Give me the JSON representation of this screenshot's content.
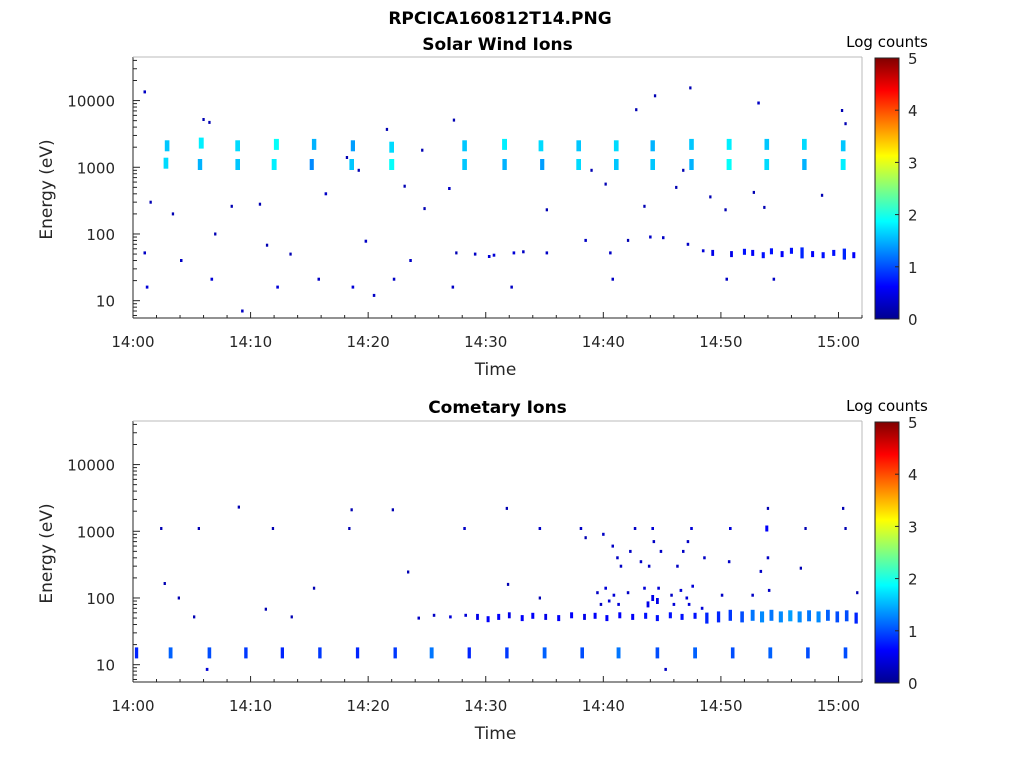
{
  "figure": {
    "file_title": "RPCICA160812T14.PNG"
  },
  "colormap": [
    "#00008f",
    "#0000ff",
    "#0080ff",
    "#00ffff",
    "#80ff80",
    "#ffff00",
    "#ff8000",
    "#ff0000",
    "#800000"
  ],
  "chart_data": [
    {
      "type": "heatmap",
      "title": "Solar Wind Ions",
      "xlabel": "Time",
      "ylabel": "Energy (eV)",
      "x_ticks": [
        "14:00",
        "14:10",
        "14:20",
        "14:30",
        "14:40",
        "14:50",
        "15:00"
      ],
      "y_ticks": [
        "10",
        "100",
        "1000",
        "10000"
      ],
      "y_scale": "log",
      "xlim_minutes": [
        0,
        62
      ],
      "ylim": [
        5.5,
        45000
      ],
      "colorbar": {
        "label": "Log counts",
        "ticks": [
          "0",
          "1",
          "2",
          "3",
          "4",
          "5"
        ],
        "range": [
          0,
          5
        ]
      },
      "points": [
        [
          1.0,
          13500,
          0.3
        ],
        [
          2.9,
          2100,
          1.6
        ],
        [
          2.8,
          1150,
          1.7
        ],
        [
          5.8,
          2300,
          1.8
        ],
        [
          5.7,
          1100,
          1.5
        ],
        [
          8.9,
          2100,
          1.7
        ],
        [
          8.9,
          1100,
          1.6
        ],
        [
          12.2,
          2200,
          1.9
        ],
        [
          12.0,
          1100,
          1.8
        ],
        [
          15.4,
          2200,
          1.5
        ],
        [
          15.2,
          1100,
          1.3
        ],
        [
          18.7,
          2100,
          1.4
        ],
        [
          18.6,
          1100,
          1.6
        ],
        [
          22.0,
          2000,
          1.7
        ],
        [
          22.0,
          1100,
          1.9
        ],
        [
          28.2,
          2100,
          1.6
        ],
        [
          28.2,
          1100,
          1.6
        ],
        [
          31.6,
          2200,
          1.8
        ],
        [
          31.6,
          1100,
          1.5
        ],
        [
          34.7,
          2100,
          1.7
        ],
        [
          34.8,
          1100,
          1.4
        ],
        [
          37.9,
          2100,
          1.6
        ],
        [
          37.9,
          1100,
          1.7
        ],
        [
          41.1,
          2100,
          1.7
        ],
        [
          41.1,
          1100,
          1.6
        ],
        [
          44.2,
          2100,
          1.5
        ],
        [
          44.2,
          1100,
          1.6
        ],
        [
          47.5,
          2200,
          1.6
        ],
        [
          47.5,
          1100,
          1.5
        ],
        [
          50.7,
          2200,
          1.8
        ],
        [
          50.7,
          1100,
          1.9
        ],
        [
          53.9,
          2200,
          1.6
        ],
        [
          53.9,
          1100,
          1.7
        ],
        [
          57.1,
          2200,
          1.7
        ],
        [
          57.1,
          1100,
          1.5
        ],
        [
          60.4,
          2100,
          1.6
        ],
        [
          60.4,
          1100,
          1.8
        ],
        [
          6.0,
          5200,
          0.2
        ],
        [
          6.5,
          4700,
          0.2
        ],
        [
          18.2,
          1400,
          0.2
        ],
        [
          21.6,
          3700,
          0.2
        ],
        [
          24.6,
          1800,
          0.2
        ],
        [
          27.3,
          5100,
          0.2
        ],
        [
          42.8,
          7300,
          0.2
        ],
        [
          44.4,
          11800,
          0.2
        ],
        [
          47.4,
          15500,
          0.2
        ],
        [
          53.2,
          9200,
          0.3
        ],
        [
          60.3,
          7100,
          0.2
        ],
        [
          60.6,
          4500,
          0.2
        ],
        [
          1.5,
          300,
          0.2
        ],
        [
          3.4,
          200,
          0.2
        ],
        [
          8.4,
          260,
          0.2
        ],
        [
          10.8,
          280,
          0.2
        ],
        [
          16.4,
          400,
          0.3
        ],
        [
          19.2,
          900,
          0.2
        ],
        [
          23.1,
          520,
          0.2
        ],
        [
          24.8,
          240,
          0.2
        ],
        [
          26.9,
          480,
          0.3
        ],
        [
          35.2,
          230,
          0.2
        ],
        [
          39.0,
          900,
          0.2
        ],
        [
          40.2,
          560,
          0.2
        ],
        [
          43.5,
          260,
          0.2
        ],
        [
          46.2,
          500,
          0.2
        ],
        [
          46.8,
          900,
          0.2
        ],
        [
          49.1,
          360,
          0.2
        ],
        [
          50.4,
          230,
          0.2
        ],
        [
          52.8,
          420,
          0.2
        ],
        [
          53.7,
          250,
          0.2
        ],
        [
          58.6,
          380,
          0.2
        ],
        [
          1.0,
          52,
          0.3
        ],
        [
          4.1,
          40,
          0.3
        ],
        [
          7.0,
          100,
          0.2
        ],
        [
          11.4,
          68,
          0.2
        ],
        [
          13.4,
          50,
          0.2
        ],
        [
          19.8,
          78,
          0.3
        ],
        [
          23.6,
          40,
          0.3
        ],
        [
          27.5,
          52,
          0.2
        ],
        [
          29.1,
          50,
          0.3
        ],
        [
          30.3,
          46,
          0.4
        ],
        [
          30.7,
          48,
          0.4
        ],
        [
          32.4,
          52,
          0.4
        ],
        [
          33.2,
          54,
          0.3
        ],
        [
          35.2,
          52,
          0.3
        ],
        [
          38.5,
          80,
          0.3
        ],
        [
          40.6,
          52,
          0.3
        ],
        [
          42.1,
          80,
          0.2
        ],
        [
          44.0,
          90,
          0.3
        ],
        [
          45.1,
          88,
          0.3
        ],
        [
          47.2,
          70,
          0.3
        ],
        [
          48.5,
          56,
          0.4
        ],
        [
          49.3,
          52,
          0.5
        ],
        [
          50.9,
          50,
          0.5
        ],
        [
          52.0,
          54,
          0.7
        ],
        [
          52.7,
          52,
          0.6
        ],
        [
          53.6,
          48,
          0.7
        ],
        [
          54.3,
          55,
          0.7
        ],
        [
          55.2,
          50,
          0.6
        ],
        [
          56.0,
          56,
          0.7
        ],
        [
          56.9,
          52,
          0.8
        ],
        [
          57.8,
          50,
          0.6
        ],
        [
          58.7,
          48,
          0.7
        ],
        [
          59.6,
          52,
          0.7
        ],
        [
          60.5,
          50,
          0.8
        ],
        [
          61.3,
          48,
          0.6
        ],
        [
          1.2,
          16,
          0.4
        ],
        [
          6.7,
          21,
          0.4
        ],
        [
          12.3,
          16,
          0.4
        ],
        [
          15.8,
          21,
          0.3
        ],
        [
          18.7,
          16,
          0.4
        ],
        [
          20.5,
          12,
          0.3
        ],
        [
          22.2,
          21,
          0.3
        ],
        [
          27.2,
          16,
          0.3
        ],
        [
          32.2,
          16,
          0.3
        ],
        [
          40.8,
          21,
          0.3
        ],
        [
          50.5,
          21,
          0.3
        ],
        [
          54.5,
          21,
          0.3
        ],
        [
          9.3,
          7,
          0.3
        ]
      ]
    },
    {
      "type": "heatmap",
      "title": "Cometary Ions",
      "xlabel": "Time",
      "ylabel": "Energy (eV)",
      "x_ticks": [
        "14:00",
        "14:10",
        "14:20",
        "14:30",
        "14:40",
        "14:50",
        "15:00"
      ],
      "y_ticks": [
        "10",
        "100",
        "1000",
        "10000"
      ],
      "y_scale": "log",
      "xlim_minutes": [
        0,
        62
      ],
      "ylim": [
        5.5,
        45000
      ],
      "colorbar": {
        "label": "Log counts",
        "ticks": [
          "0",
          "1",
          "2",
          "3",
          "4",
          "5"
        ],
        "range": [
          0,
          5
        ]
      },
      "points": [
        [
          2.4,
          1100,
          0.2
        ],
        [
          5.6,
          1100,
          0.2
        ],
        [
          9.0,
          2300,
          0.2
        ],
        [
          11.9,
          1100,
          0.2
        ],
        [
          18.6,
          2100,
          0.2
        ],
        [
          18.4,
          1100,
          0.2
        ],
        [
          22.1,
          2100,
          0.2
        ],
        [
          28.2,
          1100,
          0.3
        ],
        [
          31.8,
          2200,
          0.2
        ],
        [
          34.6,
          1100,
          0.3
        ],
        [
          38.1,
          1100,
          0.3
        ],
        [
          42.7,
          1100,
          0.3
        ],
        [
          44.2,
          1100,
          0.4
        ],
        [
          47.5,
          1100,
          0.4
        ],
        [
          50.8,
          1100,
          0.4
        ],
        [
          54.0,
          2200,
          0.2
        ],
        [
          53.9,
          1100,
          0.6
        ],
        [
          57.2,
          1100,
          0.2
        ],
        [
          60.4,
          2200,
          0.2
        ],
        [
          60.6,
          1100,
          0.2
        ],
        [
          2.7,
          165,
          0.2
        ],
        [
          3.9,
          100,
          0.2
        ],
        [
          5.2,
          52,
          0.2
        ],
        [
          11.3,
          68,
          0.2
        ],
        [
          13.5,
          52,
          0.2
        ],
        [
          15.4,
          140,
          0.2
        ],
        [
          23.4,
          245,
          0.2
        ],
        [
          31.9,
          160,
          0.2
        ],
        [
          34.6,
          100,
          0.2
        ],
        [
          38.5,
          800,
          0.2
        ],
        [
          40.0,
          900,
          0.3
        ],
        [
          40.8,
          600,
          0.3
        ],
        [
          41.2,
          400,
          0.3
        ],
        [
          41.5,
          300,
          0.3
        ],
        [
          42.3,
          500,
          0.3
        ],
        [
          43.2,
          350,
          0.3
        ],
        [
          43.9,
          300,
          0.3
        ],
        [
          44.3,
          700,
          0.3
        ],
        [
          44.9,
          500,
          0.3
        ],
        [
          46.3,
          300,
          0.3
        ],
        [
          46.8,
          500,
          0.3
        ],
        [
          47.2,
          700,
          0.3
        ],
        [
          48.6,
          400,
          0.3
        ],
        [
          50.7,
          350,
          0.3
        ],
        [
          53.4,
          250,
          0.3
        ],
        [
          54.0,
          400,
          0.3
        ],
        [
          56.8,
          280,
          0.2
        ],
        [
          39.5,
          120,
          0.3
        ],
        [
          40.2,
          140,
          0.4
        ],
        [
          40.9,
          110,
          0.4
        ],
        [
          42.1,
          120,
          0.3
        ],
        [
          43.5,
          140,
          0.4
        ],
        [
          44.2,
          100,
          0.5
        ],
        [
          44.7,
          140,
          0.4
        ],
        [
          45.8,
          110,
          0.3
        ],
        [
          46.6,
          130,
          0.4
        ],
        [
          47.1,
          100,
          0.4
        ],
        [
          47.6,
          150,
          0.4
        ],
        [
          50.1,
          110,
          0.3
        ],
        [
          52.7,
          110,
          0.3
        ],
        [
          54.1,
          130,
          0.3
        ],
        [
          39.8,
          80,
          0.3
        ],
        [
          40.5,
          90,
          0.4
        ],
        [
          41.3,
          80,
          0.4
        ],
        [
          43.8,
          80,
          0.5
        ],
        [
          44.6,
          90,
          0.5
        ],
        [
          46.0,
          80,
          0.4
        ],
        [
          47.3,
          80,
          0.4
        ],
        [
          48.4,
          70,
          0.4
        ],
        [
          24.3,
          50,
          0.3
        ],
        [
          25.6,
          55,
          0.3
        ],
        [
          27.0,
          52,
          0.4
        ],
        [
          28.3,
          55,
          0.4
        ],
        [
          29.3,
          52,
          0.5
        ],
        [
          30.2,
          48,
          0.6
        ],
        [
          31.1,
          52,
          0.6
        ],
        [
          32.0,
          55,
          0.5
        ],
        [
          33.1,
          50,
          0.6
        ],
        [
          34.0,
          54,
          0.6
        ],
        [
          35.1,
          52,
          0.5
        ],
        [
          36.2,
          50,
          0.6
        ],
        [
          37.3,
          55,
          0.6
        ],
        [
          38.4,
          52,
          0.5
        ],
        [
          39.3,
          54,
          0.6
        ],
        [
          40.3,
          50,
          0.6
        ],
        [
          41.4,
          55,
          0.6
        ],
        [
          42.5,
          52,
          0.6
        ],
        [
          43.6,
          54,
          0.7
        ],
        [
          44.6,
          50,
          0.7
        ],
        [
          45.7,
          55,
          0.7
        ],
        [
          46.7,
          52,
          0.7
        ],
        [
          47.8,
          54,
          0.7
        ],
        [
          48.8,
          50,
          0.8
        ],
        [
          49.8,
          52,
          0.8
        ],
        [
          50.8,
          55,
          0.9
        ],
        [
          51.8,
          52,
          1.0
        ],
        [
          52.7,
          55,
          1.2
        ],
        [
          53.5,
          52,
          1.3
        ],
        [
          54.3,
          55,
          1.2
        ],
        [
          55.1,
          52,
          1.3
        ],
        [
          55.9,
          54,
          1.4
        ],
        [
          56.7,
          52,
          1.3
        ],
        [
          57.5,
          54,
          1.2
        ],
        [
          58.3,
          52,
          1.3
        ],
        [
          59.1,
          55,
          1.1
        ],
        [
          59.9,
          52,
          1.0
        ],
        [
          60.7,
          54,
          1.0
        ],
        [
          61.5,
          50,
          0.8
        ],
        [
          61.6,
          120,
          0.2
        ],
        [
          0.3,
          15,
          0.8
        ],
        [
          3.2,
          15,
          1.1
        ],
        [
          6.5,
          15,
          1.0
        ],
        [
          9.6,
          15,
          0.9
        ],
        [
          12.7,
          15,
          0.8
        ],
        [
          15.9,
          15,
          0.9
        ],
        [
          19.1,
          15,
          0.8
        ],
        [
          22.3,
          15,
          0.9
        ],
        [
          25.4,
          15,
          1.2
        ],
        [
          28.6,
          15,
          0.8
        ],
        [
          31.8,
          15,
          0.9
        ],
        [
          35.0,
          15,
          1.1
        ],
        [
          38.2,
          15,
          1.0
        ],
        [
          41.3,
          15,
          1.2
        ],
        [
          44.6,
          15,
          1.0
        ],
        [
          47.8,
          15,
          1.1
        ],
        [
          51.0,
          15,
          1.0
        ],
        [
          54.2,
          15,
          1.1
        ],
        [
          57.4,
          15,
          1.0
        ],
        [
          60.6,
          15,
          1.0
        ],
        [
          6.3,
          8.5,
          0.4
        ],
        [
          45.3,
          8.5,
          0.3
        ]
      ]
    }
  ]
}
